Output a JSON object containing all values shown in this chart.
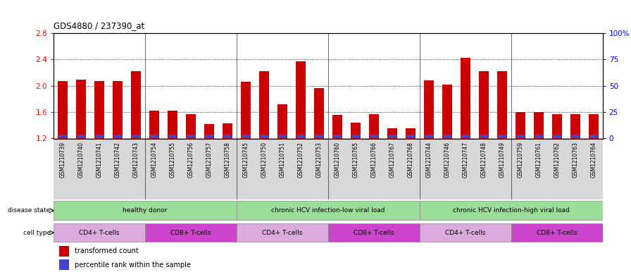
{
  "title": "GDS4880 / 237390_at",
  "samples": [
    "GSM1210739",
    "GSM1210740",
    "GSM1210741",
    "GSM1210742",
    "GSM1210743",
    "GSM1210754",
    "GSM1210755",
    "GSM1210756",
    "GSM1210757",
    "GSM1210758",
    "GSM1210745",
    "GSM1210750",
    "GSM1210751",
    "GSM1210752",
    "GSM1210753",
    "GSM1210760",
    "GSM1210765",
    "GSM1210766",
    "GSM1210767",
    "GSM1210768",
    "GSM1210744",
    "GSM1210746",
    "GSM1210747",
    "GSM1210748",
    "GSM1210749",
    "GSM1210759",
    "GSM1210761",
    "GSM1210762",
    "GSM1210763",
    "GSM1210764"
  ],
  "transformed_count": [
    2.07,
    2.09,
    2.07,
    2.07,
    2.22,
    1.62,
    1.62,
    1.57,
    1.42,
    1.43,
    2.06,
    2.22,
    1.72,
    2.37,
    1.97,
    1.56,
    1.44,
    1.57,
    1.35,
    1.35,
    2.08,
    2.02,
    2.43,
    2.22,
    2.22,
    1.6,
    1.6,
    1.57,
    1.57,
    1.57
  ],
  "percentile_rank": [
    8,
    8,
    8,
    8,
    8,
    5,
    5,
    5,
    5,
    5,
    5,
    8,
    5,
    8,
    8,
    5,
    5,
    5,
    5,
    5,
    8,
    8,
    8,
    8,
    8,
    5,
    5,
    5,
    5,
    5
  ],
  "ymin": 1.2,
  "ymax": 2.8,
  "yticks": [
    1.2,
    1.6,
    2.0,
    2.4,
    2.8
  ],
  "right_yticks": [
    0,
    25,
    50,
    75,
    100
  ],
  "right_ytick_labels": [
    "0",
    "25",
    "50",
    "75",
    "100%"
  ],
  "bar_color": "#cc0000",
  "percentile_color": "#4444cc",
  "background_color": "#ffffff",
  "plot_bg_color": "#e8e8e8",
  "ds_color": "#99dd99",
  "cd4_color": "#ddaadd",
  "cd8_color": "#cc44cc",
  "disease_state_groups": [
    {
      "label": "healthy donor",
      "start": 0,
      "end": 10
    },
    {
      "label": "chronic HCV infection-low viral load",
      "start": 10,
      "end": 20
    },
    {
      "label": "chronic HCV infection-high viral load",
      "start": 20,
      "end": 30
    }
  ],
  "cell_type_groups": [
    {
      "label": "CD4+ T-cells",
      "start": 0,
      "end": 5
    },
    {
      "label": "CD8+ T-cells",
      "start": 5,
      "end": 10
    },
    {
      "label": "CD4+ T-cells",
      "start": 10,
      "end": 15
    },
    {
      "label": "CD8+ T-cells",
      "start": 15,
      "end": 20
    },
    {
      "label": "CD4+ T-cells",
      "start": 20,
      "end": 25
    },
    {
      "label": "CD8+ T-cells",
      "start": 25,
      "end": 30
    }
  ]
}
